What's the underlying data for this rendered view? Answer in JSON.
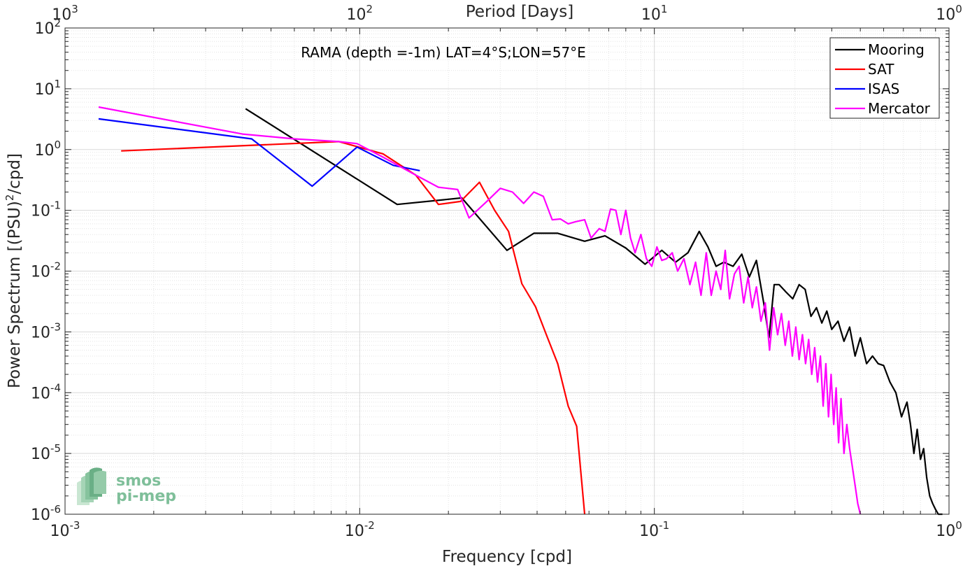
{
  "chart_data": {
    "type": "line",
    "title": "RAMA (depth =-1m) LAT=4°S;LON=57°E",
    "xlabel": "Frequency [cpd]",
    "ylabel_main": "Power Spectrum [(PSU)",
    "ylabel_sup": "2",
    "ylabel_tail": "/cpd]",
    "top_xlabel": "Period [Days]",
    "x_scale": "log",
    "y_scale": "log",
    "xlim": [
      0.001,
      1
    ],
    "ylim": [
      1e-06,
      100
    ],
    "grid": true,
    "legend_position": "top-right",
    "x_ticks": [
      {
        "value": 0.001,
        "base": "10",
        "exp": "-3"
      },
      {
        "value": 0.01,
        "base": "10",
        "exp": "-2"
      },
      {
        "value": 0.1,
        "base": "10",
        "exp": "-1"
      },
      {
        "value": 1,
        "base": "10",
        "exp": "0"
      }
    ],
    "top_ticks": [
      {
        "value": 0.001,
        "base": "10",
        "exp": "3"
      },
      {
        "value": 0.01,
        "base": "10",
        "exp": "2"
      },
      {
        "value": 0.1,
        "base": "10",
        "exp": "1"
      },
      {
        "value": 1,
        "base": "10",
        "exp": "0"
      }
    ],
    "y_ticks": [
      {
        "value": 100,
        "base": "10",
        "exp": "2"
      },
      {
        "value": 10,
        "base": "10",
        "exp": "1"
      },
      {
        "value": 1,
        "base": "10",
        "exp": "0"
      },
      {
        "value": 0.1,
        "base": "10",
        "exp": "-1"
      },
      {
        "value": 0.01,
        "base": "10",
        "exp": "-2"
      },
      {
        "value": 0.001,
        "base": "10",
        "exp": "-3"
      },
      {
        "value": 0.0001,
        "base": "10",
        "exp": "-4"
      },
      {
        "value": 1e-05,
        "base": "10",
        "exp": "-5"
      },
      {
        "value": 1e-06,
        "base": "10",
        "exp": "-6"
      }
    ],
    "series": [
      {
        "name": "Mooring",
        "color": "#000000",
        "x": [
          0.0041,
          0.0134,
          0.0222,
          0.0316,
          0.039,
          0.047,
          0.058,
          0.068,
          0.08,
          0.093,
          0.106,
          0.118,
          0.13,
          0.142,
          0.152,
          0.162,
          0.172,
          0.185,
          0.198,
          0.21,
          0.222,
          0.235,
          0.245,
          0.255,
          0.265,
          0.28,
          0.295,
          0.31,
          0.325,
          0.34,
          0.355,
          0.37,
          0.385,
          0.4,
          0.42,
          0.44,
          0.46,
          0.48,
          0.5,
          0.525,
          0.55,
          0.575,
          0.6,
          0.63,
          0.66,
          0.69,
          0.72,
          0.74,
          0.76,
          0.78,
          0.8,
          0.82,
          0.84,
          0.86,
          0.88,
          0.9,
          0.92,
          0.935,
          0.95
        ],
        "y": [
          4.7,
          0.125,
          0.16,
          0.022,
          0.042,
          0.042,
          0.031,
          0.038,
          0.024,
          0.013,
          0.022,
          0.014,
          0.02,
          0.045,
          0.025,
          0.012,
          0.014,
          0.012,
          0.019,
          0.008,
          0.015,
          0.003,
          0.0008,
          0.006,
          0.006,
          0.0045,
          0.0035,
          0.006,
          0.005,
          0.0018,
          0.0025,
          0.0014,
          0.0022,
          0.0011,
          0.0015,
          0.0007,
          0.0012,
          0.0004,
          0.0008,
          0.0003,
          0.0004,
          0.0003,
          0.00028,
          0.00015,
          0.0001,
          4e-05,
          7e-05,
          3e-05,
          1e-05,
          2.5e-05,
          8e-06,
          1.2e-05,
          4e-06,
          2e-06,
          1.5e-06,
          1.2e-06,
          1e-06,
          1e-06,
          1e-06
        ]
      },
      {
        "name": "SAT",
        "color": "#ff0000",
        "x": [
          0.00155,
          0.0085,
          0.012,
          0.0155,
          0.0185,
          0.022,
          0.0255,
          0.0287,
          0.032,
          0.0355,
          0.0395,
          0.043,
          0.047,
          0.051,
          0.0545,
          0.058
        ],
        "y": [
          0.95,
          1.35,
          0.85,
          0.38,
          0.125,
          0.14,
          0.29,
          0.1,
          0.045,
          0.0062,
          0.0026,
          0.0009,
          0.0003,
          6e-05,
          2.8e-05,
          1e-06
        ]
      },
      {
        "name": "ISAS",
        "color": "#0000ff",
        "x": [
          0.0013,
          0.0043,
          0.0069,
          0.0098,
          0.013,
          0.016
        ],
        "y": [
          3.2,
          1.5,
          0.25,
          1.1,
          0.55,
          0.45
        ]
      },
      {
        "name": "Mercator",
        "color": "#ff00ff",
        "x": [
          0.0013,
          0.004,
          0.006,
          0.0085,
          0.0098,
          0.012,
          0.0155,
          0.0185,
          0.0215,
          0.0235,
          0.027,
          0.03,
          0.033,
          0.036,
          0.039,
          0.042,
          0.045,
          0.048,
          0.051,
          0.054,
          0.058,
          0.061,
          0.065,
          0.068,
          0.071,
          0.074,
          0.077,
          0.08,
          0.083,
          0.086,
          0.09,
          0.094,
          0.098,
          0.102,
          0.106,
          0.11,
          0.115,
          0.12,
          0.126,
          0.132,
          0.138,
          0.144,
          0.15,
          0.156,
          0.162,
          0.168,
          0.174,
          0.18,
          0.187,
          0.194,
          0.201,
          0.208,
          0.215,
          0.222,
          0.23,
          0.238,
          0.246,
          0.254,
          0.262,
          0.27,
          0.278,
          0.286,
          0.294,
          0.302,
          0.31,
          0.318,
          0.326,
          0.334,
          0.342,
          0.35,
          0.358,
          0.366,
          0.374,
          0.382,
          0.39,
          0.398,
          0.406,
          0.414,
          0.422,
          0.43,
          0.44,
          0.45,
          0.46,
          0.47,
          0.48,
          0.49,
          0.5
        ],
        "y": [
          5.0,
          1.8,
          1.5,
          1.35,
          1.25,
          0.75,
          0.38,
          0.24,
          0.22,
          0.075,
          0.14,
          0.23,
          0.2,
          0.13,
          0.2,
          0.17,
          0.07,
          0.072,
          0.06,
          0.065,
          0.07,
          0.035,
          0.05,
          0.045,
          0.105,
          0.1,
          0.04,
          0.1,
          0.035,
          0.02,
          0.04,
          0.016,
          0.012,
          0.025,
          0.015,
          0.016,
          0.02,
          0.01,
          0.016,
          0.006,
          0.014,
          0.004,
          0.02,
          0.004,
          0.01,
          0.005,
          0.022,
          0.0035,
          0.009,
          0.012,
          0.003,
          0.008,
          0.0025,
          0.0055,
          0.0015,
          0.003,
          0.0005,
          0.0025,
          0.0009,
          0.002,
          0.0006,
          0.0015,
          0.0004,
          0.0012,
          0.00035,
          0.0009,
          0.0003,
          0.00075,
          0.0002,
          0.00055,
          0.00015,
          0.0004,
          6e-05,
          0.0003,
          4e-05,
          0.0002,
          3e-05,
          0.00012,
          1.5e-05,
          8e-05,
          1e-05,
          3e-05,
          1.2e-05,
          6e-06,
          3e-06,
          1.5e-06,
          1e-06
        ]
      }
    ]
  },
  "logo": {
    "line1": "smos",
    "line2": "pi-mep"
  }
}
